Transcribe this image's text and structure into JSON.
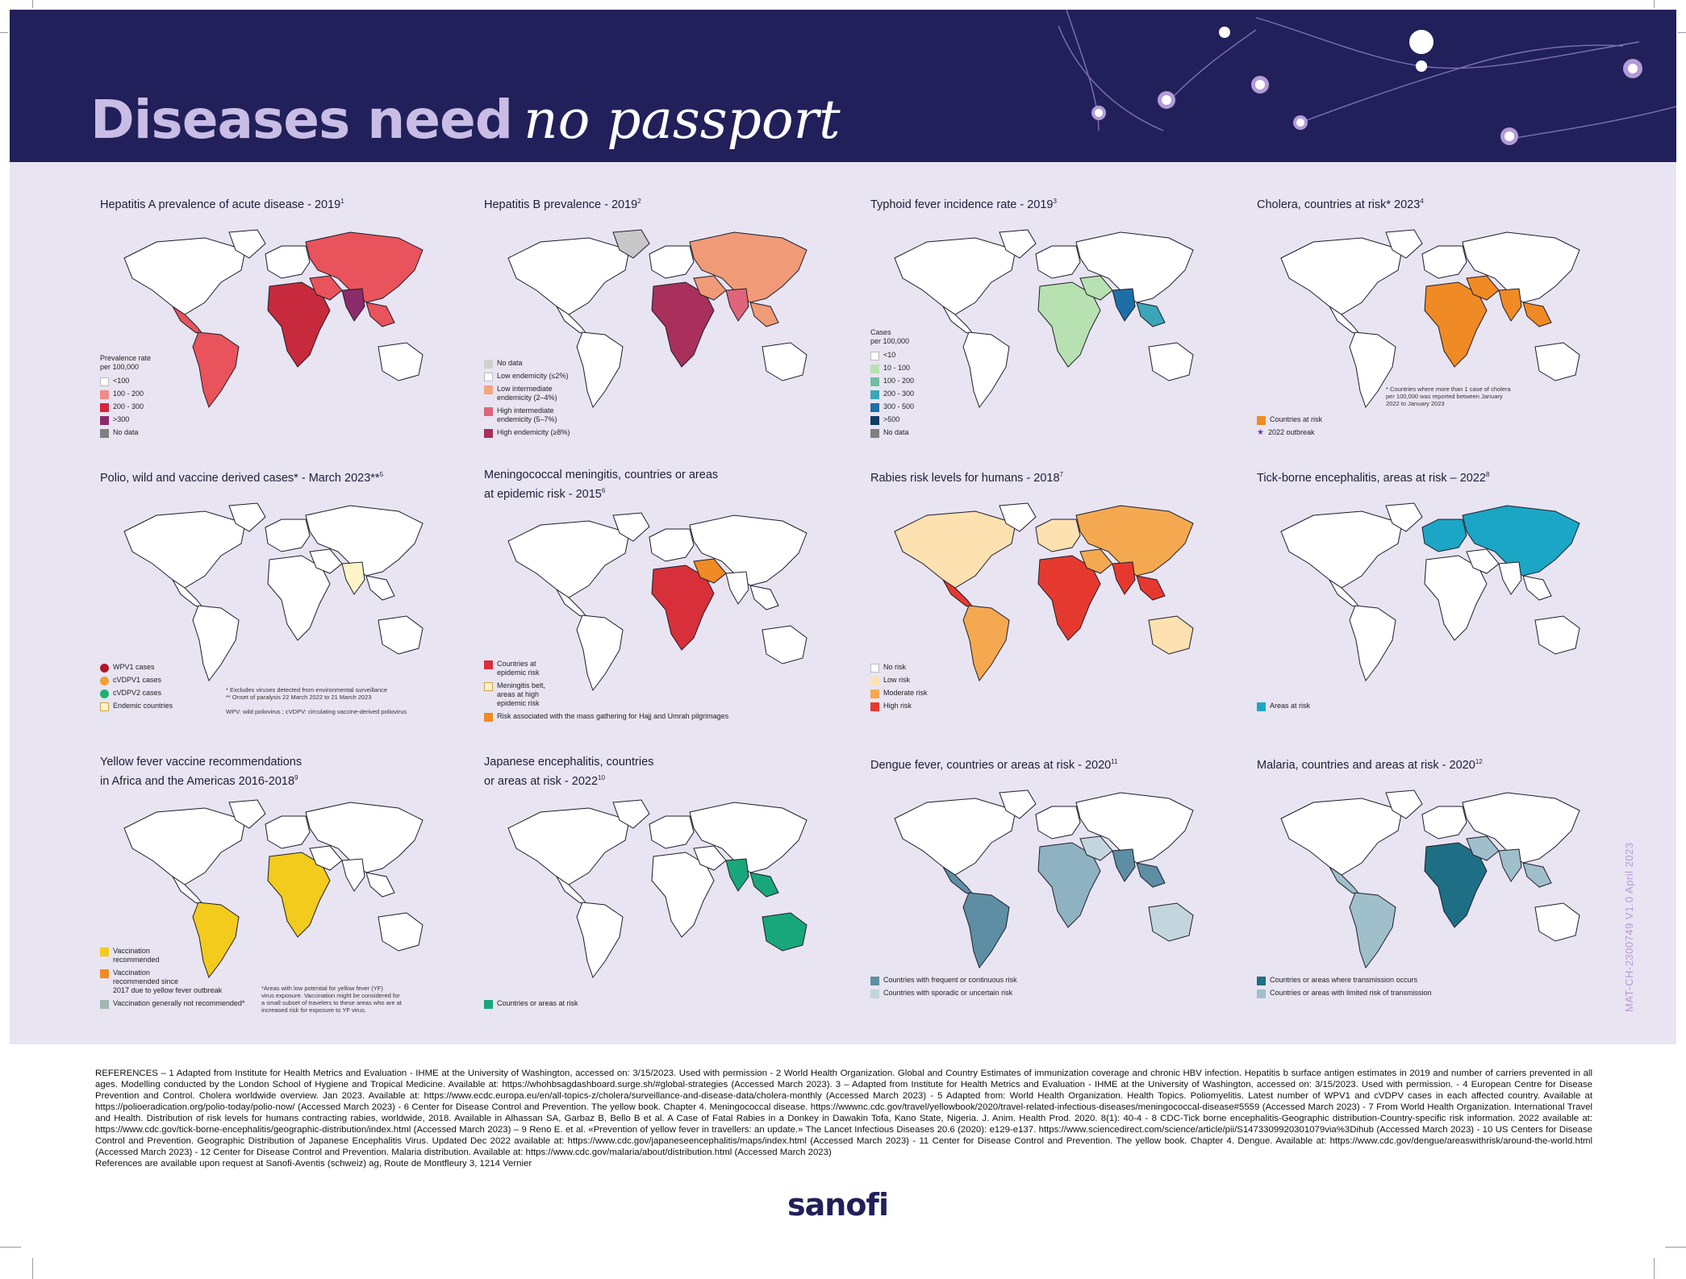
{
  "header": {
    "title_bold": "Diseases need",
    "title_italic": "no passport"
  },
  "vertical_code": "MAT-CH-2300749 V1.0 April 2023",
  "logo": "sanofi",
  "colors": {
    "header_bg": "#22205a",
    "panel_bg": "#e8e4f2",
    "accent_purple": "#b39bd8"
  },
  "maps": [
    {
      "title": "Hepatitis A prevalence of acute disease - 2019",
      "ref": "1",
      "legend_heading": "Prevalence rate\nper 100,000",
      "legend": [
        {
          "label": "<100",
          "color": "#ffffff"
        },
        {
          "label": "100 - 200",
          "color": "#f08a8a"
        },
        {
          "label": "200 - 300",
          "color": "#d7263d"
        },
        {
          "label": ">300",
          "color": "#8b2a6b"
        },
        {
          "label": "No data",
          "color": "#808080"
        }
      ],
      "note": "",
      "palette": [
        "#e9535b",
        "#e9535b",
        "#c62a3c",
        "#8c2b6a"
      ]
    },
    {
      "title": "Hepatitis B prevalence - 2019",
      "ref": "2",
      "legend_heading": "",
      "legend": [
        {
          "label": "No data",
          "color": "#d0d0d0"
        },
        {
          "label": "Low endemicity (≤2%)",
          "color": "#ffffff"
        },
        {
          "label": "Low intermediate\nendemicity (2–4%)",
          "color": "#f4a582"
        },
        {
          "label": "High intermediate\nendemicity (5–7%)",
          "color": "#e0657a"
        },
        {
          "label": "High endemicity (≥8%)",
          "color": "#a8305a"
        }
      ],
      "note": "",
      "palette": [
        "#f09a78",
        "#e0657a",
        "#a8305a",
        "#c8c8c8"
      ]
    },
    {
      "title": "Typhoid fever incidence rate - 2019",
      "ref": "3",
      "legend_heading": "Cases\nper 100,000",
      "legend": [
        {
          "label": "<10",
          "color": "#ffffff"
        },
        {
          "label": "10 - 100",
          "color": "#b7e1b0"
        },
        {
          "label": "100 - 200",
          "color": "#6fc0a0"
        },
        {
          "label": "200 - 300",
          "color": "#3aa6b8"
        },
        {
          "label": "300 - 500",
          "color": "#1e6fa8"
        },
        {
          "label": ">500",
          "color": "#0d3b66"
        },
        {
          "label": "No data",
          "color": "#808080"
        }
      ],
      "note": "",
      "palette": [
        "#b7e1b0",
        "#6fc0a0",
        "#1e6fa8",
        "#3aa6b8"
      ]
    },
    {
      "title": "Cholera, countries at risk* 2023",
      "ref": "4",
      "legend_heading": "",
      "legend": [
        {
          "label": "Countries at risk",
          "color": "#f08a24"
        },
        {
          "label": "2022 outbreak",
          "color": "#6a3aa0",
          "star": true
        }
      ],
      "note": "* Countries where more than 1 case of cholera\nper 100,000 was reported between January\n2022 to January 2023",
      "palette": [
        "#f08a24",
        "#f08a24",
        "#f08a24",
        "#f08a24"
      ]
    },
    {
      "title": "Polio, wild and vaccine derived cases* - March 2023**",
      "ref": "5",
      "legend_heading": "",
      "legend": [
        {
          "label": "WPV1 cases",
          "color": "#b3152b",
          "dot": true
        },
        {
          "label": "cVDPV1 cases",
          "color": "#f0a030",
          "dot": true
        },
        {
          "label": "cVDPV2 cases",
          "color": "#20b070",
          "dot": true
        },
        {
          "label": "Endemic countries",
          "color": "#fff4c8"
        }
      ],
      "note": "* Excludes viruses detected from environmental surveillance\n** Onset of paralysis 22 March 2022 to 21 March 2023\n\nWPV: wild poliovirus ; cVDPV: circulating vaccine-derived poliovirus",
      "palette": [
        "#fff4c8",
        "#fff4c8",
        "#fff4c8",
        "#fff4c8"
      ]
    },
    {
      "title": "Meningococcal meningitis, countries or areas\nat epidemic risk - 2015",
      "ref": "6",
      "legend_heading": "",
      "legend": [
        {
          "label": "Countries at\nepidemic risk",
          "color": "#d7303a"
        },
        {
          "label": "Meningitis belt,\nareas at high\nepidemic risk",
          "color": "#fff4c8"
        },
        {
          "label": "Risk associated with the mass gathering for Hajj and Umrah pilgrimages",
          "color": "#f08a24"
        }
      ],
      "note": "",
      "palette": [
        "#d7303a",
        "#d7303a",
        "#f08a24",
        "#d7303a"
      ]
    },
    {
      "title": "Rabies risk levels for humans - 2018",
      "ref": "7",
      "legend_heading": "",
      "legend": [
        {
          "label": "No risk",
          "color": "#ffffff"
        },
        {
          "label": "Low risk",
          "color": "#fde1b0"
        },
        {
          "label": "Moderate risk",
          "color": "#f4a950"
        },
        {
          "label": "High risk",
          "color": "#e5392f"
        }
      ],
      "note": "",
      "palette": [
        "#fde1b0",
        "#f4a950",
        "#e5392f",
        "#e5392f"
      ]
    },
    {
      "title": "Tick-borne encephalitis, areas at risk – 2022",
      "ref": "8",
      "legend_heading": "",
      "legend": [
        {
          "label": "Areas at risk",
          "color": "#1ba6c6"
        }
      ],
      "note": "",
      "palette": [
        "#1ba6c6",
        "#1ba6c6",
        "#1ba6c6",
        "#1ba6c6"
      ]
    },
    {
      "title": "Yellow fever vaccine recommendations\nin Africa and the Americas 2016-2018",
      "ref": "9",
      "legend_heading": "",
      "legend": [
        {
          "label": "Vaccination\nrecommended",
          "color": "#f2cb1d"
        },
        {
          "label": "Vaccination\nrecommended since\n2017 due to yellow fever outbreak",
          "color": "#f08a24"
        },
        {
          "label": "Vaccination generally not recommended*",
          "color": "#a0b8b0"
        }
      ],
      "note": "*Areas with low potential for yellow fever (YF)\nvirus exposure. Vaccination might be considered for\na small subset of travelers to these areas who are at\nincreased risk for exposure to YF virus.",
      "palette": [
        "#f2cb1d",
        "#f2cb1d",
        "#a0b8b0",
        "#f2cb1d"
      ]
    },
    {
      "title": "Japanese encephalitis, countries\nor areas at risk - 2022",
      "ref": "10",
      "legend_heading": "",
      "legend": [
        {
          "label": "Countries or areas at risk",
          "color": "#18a77a"
        }
      ],
      "note": "",
      "palette": [
        "#18a77a",
        "#18a77a",
        "#18a77a",
        "#18a77a"
      ]
    },
    {
      "title": "Dengue fever, countries or areas at risk - 2020",
      "ref": "11",
      "legend_heading": "",
      "legend": [
        {
          "label": "Countries with frequent or continuous risk",
          "color": "#5d8ea3"
        },
        {
          "label": "Countries with sporadic or uncertain risk",
          "color": "#c3d6de"
        }
      ],
      "note": "",
      "palette": [
        "#5d8ea3",
        "#c3d6de",
        "#5d8ea3",
        "#8fb2c2"
      ]
    },
    {
      "title": "Malaria, countries and areas at risk - 2020",
      "ref": "12",
      "legend_heading": "",
      "legend": [
        {
          "label": "Countries or areas where transmission occurs",
          "color": "#1e6f86"
        },
        {
          "label": "Countries or areas with limited risk of transmission",
          "color": "#9fbfcb"
        }
      ],
      "note": "",
      "palette": [
        "#9fbfcb",
        "#1e6f86",
        "#9fbfcb",
        "#9fbfcb"
      ]
    }
  ],
  "references": "REFERENCES – 1 Adapted from Institute for Health Metrics and Evaluation - IHME at the University of Washington, accessed on: 3/15/2023. Used with permission - 2 World Health Organization. Global and Country Estimates of immunization coverage and chronic HBV infection. Hepatitis b surface antigen estimates in 2019 and number of carriers prevented in all ages. Modelling conducted by the London School of Hygiene and Tropical Medicine. Available at: https://whohbsagdashboard.surge.sh/#global-strategies (Accessed March 2023). 3 – Adapted from Institute for Health Metrics and Evaluation - IHME at the University of Washington, accessed on: 3/15/2023. Used with permission. - 4 European Centre for Disease Prevention and Control. Cholera worldwide overview. Jan 2023. Available at: https://www.ecdc.europa.eu/en/all-topics-z/cholera/surveillance-and-disease-data/cholera-monthly (Accessed March 2023) - 5 Adapted from: World Health Organization. Health Topics. Poliomyelitis. Latest number of WPV1 and cVDPV cases in each affected country. Available at https://polioeradication.org/polio-today/polio-now/ (Accessed March 2023) - 6 Center for Disease Control and Prevention. The yellow book. Chapter 4. Meningococcal disease. https://wwwnc.cdc.gov/travel/yellowbook/2020/travel-related-infectious-diseases/meningococcal-disease#5559 (Accessed March 2023) - 7 From World Health Organization. International Travel and Health. Distribution of risk levels for humans contracting rabies, worldwide, 2018. Available in Alhassan SA, Garbaz B, Bello B et al. A Case of Fatal Rabies in a Donkey in Dawakin Tofa, Kano State, Nigeria. J. Anim. Health Prod. 2020. 8(1): 40-4 - 8 CDC-Tick borne encephalitis-Geographic distribution-Country-specific risk information. 2022 available at: https://www.cdc.gov/tick-borne-encephalitis/geographic-distribution/index.html (Accessed March 2023) – 9 Reno E. et al. «Prevention of yellow fever in travellers: an update.» The Lancet Infectious Diseases 20.6 (2020): e129-e137. https://www.sciencedirect.com/science/article/pii/S1473309920301079via%3Dihub (Accessed March 2023) - 10 US Centers for Disease Control and Prevention. Geographic Distribution of Japanese Encephalitis Virus. Updated Dec 2022 available at: https://www.cdc.gov/japaneseencephalitis/maps/index.html (Accessed March 2023) - 11 Center for Disease Control and Prevention. The yellow book. Chapter 4. Dengue. Available at: https://www.cdc.gov/dengue/areaswithrisk/around-the-world.html (Accessed March 2023) - 12 Center for Disease Control and Prevention. Malaria distribution. Available at: https://www.cdc.gov/malaria/about/distribution.html (Accessed March 2023)\nReferences are available upon request at Sanofi-Aventis (schweiz) ag, Route de Montfleury 3, 1214 Vernier"
}
